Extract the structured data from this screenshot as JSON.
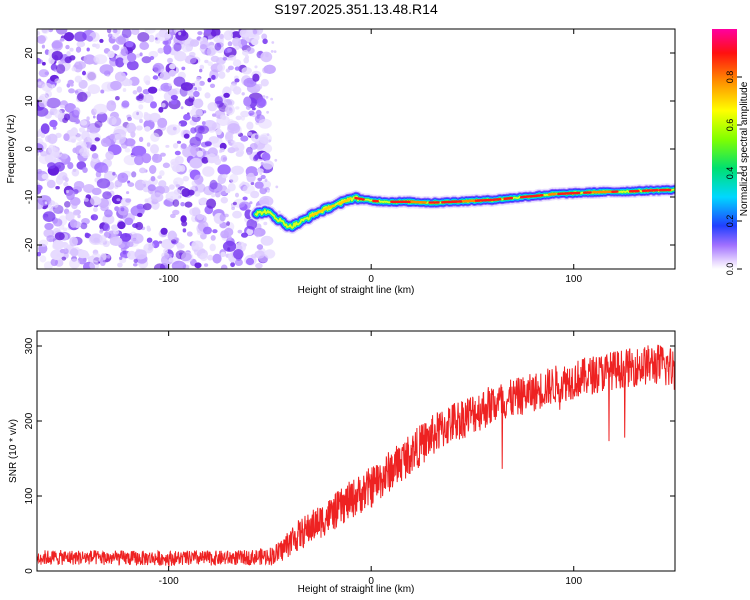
{
  "chart_data": [
    {
      "type": "heatmap",
      "title": "S197.2025.351.13.48.R14",
      "xlabel": "Height of straight line (km)",
      "ylabel": "Frequency (Hz)",
      "xlim": [
        -165,
        150
      ],
      "ylim": [
        -25,
        25
      ],
      "xticks": [
        -100,
        0,
        100
      ],
      "yticks": [
        -20,
        -10,
        0,
        10,
        20
      ],
      "noise_region_x": [
        -165,
        -53
      ],
      "ridge": {
        "x": [
          -57,
          -52,
          -48,
          -44,
          -40,
          -36,
          -32,
          -28,
          -24,
          -20,
          -16,
          -12,
          -8,
          -4,
          0,
          10,
          20,
          30,
          40,
          50,
          60,
          70,
          80,
          90,
          100,
          110,
          120,
          130,
          140,
          150
        ],
        "y": [
          -13.5,
          -13,
          -14,
          -15.2,
          -16.2,
          -15.5,
          -14.5,
          -13.5,
          -12.8,
          -12,
          -11.5,
          -10.5,
          -10.2,
          -10.5,
          -10.8,
          -11,
          -11,
          -11.2,
          -11,
          -10.8,
          -10.6,
          -10.2,
          -9.8,
          -9.4,
          -9.2,
          -9,
          -8.9,
          -8.8,
          -8.6,
          -8.5
        ]
      },
      "colorbar": {
        "label": "Normalized spectral amplitude",
        "range": [
          0,
          1
        ],
        "ticks": [
          0.0,
          0.2,
          0.4,
          0.6,
          0.8
        ]
      }
    },
    {
      "type": "line",
      "xlabel": "Height of straight line (km)",
      "ylabel": "SNR (10 * v/v)",
      "xlim": [
        -165,
        150
      ],
      "ylim": [
        0,
        320
      ],
      "xticks": [
        -100,
        0,
        100
      ],
      "yticks": [
        0,
        100,
        200,
        300
      ],
      "color": "#ee2222",
      "series": [
        {
          "name": "SNR",
          "x": [
            -165,
            -140,
            -120,
            -100,
            -80,
            -60,
            -50,
            -45,
            -40,
            -30,
            -20,
            -10,
            0,
            10,
            20,
            30,
            40,
            50,
            60,
            70,
            80,
            90,
            100,
            110,
            120,
            130,
            140,
            150
          ],
          "values": [
            18,
            18,
            17,
            17,
            17,
            18,
            20,
            25,
            40,
            58,
            75,
            95,
            112,
            135,
            158,
            180,
            198,
            210,
            222,
            230,
            238,
            248,
            255,
            262,
            268,
            272,
            276,
            270
          ],
          "noise_amplitude": [
            10,
            10,
            10,
            10,
            10,
            10,
            12,
            15,
            20,
            22,
            24,
            26,
            28,
            28,
            28,
            28,
            28,
            28,
            28,
            26,
            26,
            26,
            26,
            26,
            26,
            26,
            28,
            30
          ]
        }
      ]
    }
  ]
}
